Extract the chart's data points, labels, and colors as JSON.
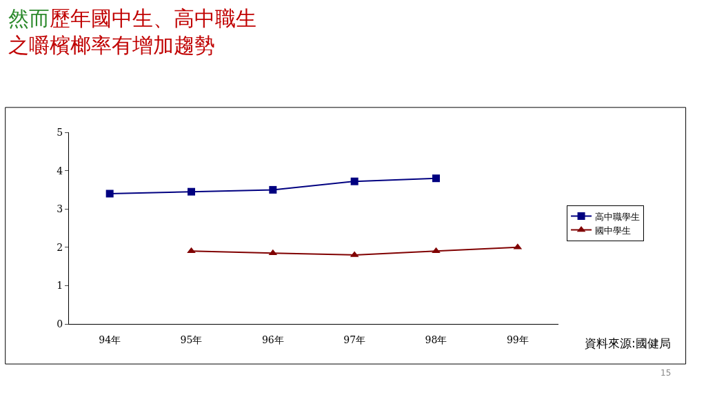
{
  "chart_data": {
    "type": "line",
    "title": "然而歷年國中生、高中職生之嚼檳榔率有增加趨勢",
    "categories": [
      "94年",
      "95年",
      "96年",
      "97年",
      "98年",
      "99年"
    ],
    "series": [
      {
        "name": "高中職學生",
        "color": "#000080",
        "marker": "square",
        "values": [
          3.4,
          3.45,
          3.5,
          3.72,
          3.8,
          null
        ]
      },
      {
        "name": "國中學生",
        "color": "#800000",
        "marker": "triangle",
        "values": [
          null,
          1.9,
          1.85,
          1.8,
          1.9,
          2.0
        ]
      }
    ],
    "ylim": [
      0,
      5
    ],
    "yticks": [
      0,
      1,
      2,
      3,
      4,
      5
    ],
    "legend": "right",
    "annotations": [
      "資料來源:國健局",
      "15"
    ]
  }
}
